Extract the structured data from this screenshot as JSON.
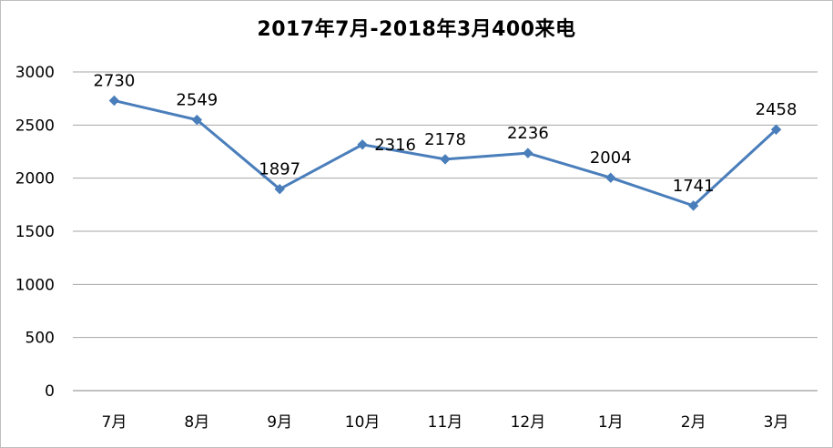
{
  "chart_data": {
    "type": "line",
    "title": "2017年7月-2018年3月400来电",
    "categories": [
      "7月",
      "8月",
      "9月",
      "10月",
      "11月",
      "12月",
      "1月",
      "2月",
      "3月"
    ],
    "series": [
      {
        "values": [
          2730,
          2549,
          1897,
          2316,
          2178,
          2236,
          2004,
          1741,
          2458
        ]
      }
    ],
    "xlabel": "",
    "ylabel": "",
    "ylim": [
      0,
      3000
    ],
    "yticks": [
      0,
      500,
      1000,
      1500,
      2000,
      2500,
      3000
    ],
    "grid": true,
    "legend": "none",
    "colors": {
      "line": "#4a7ebb",
      "grid": "#a6a6a6",
      "axis": "#868686"
    }
  }
}
